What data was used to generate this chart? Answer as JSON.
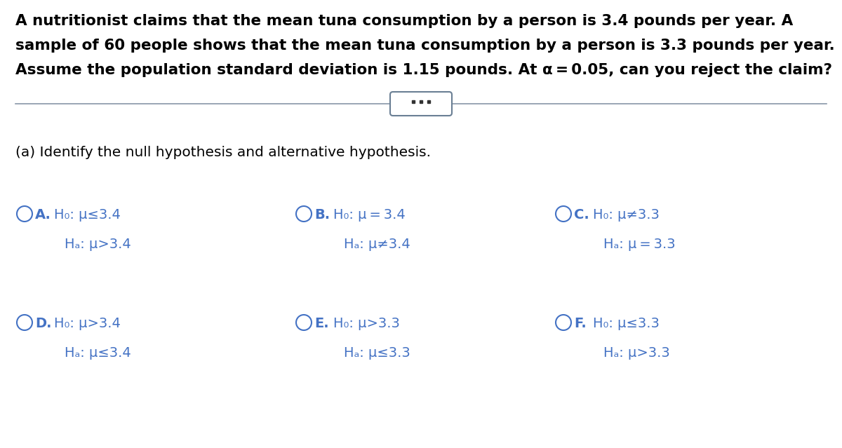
{
  "background_color": "#ffffff",
  "problem_text": "A nutritionist claims that the mean tuna consumption by a person is 3.4 pounds per year. A\nsample of 60 people shows that the mean tuna consumption by a person is 3.3 pounds per year.\nAssume the population standard deviation is 1.15 pounds. At α = 0.05, can you reject the claim?",
  "part_label": "(a) Identify the null hypothesis and alternative hypothesis.",
  "options": [
    {
      "letter": "A",
      "h0": "H₀: μ≤3.4",
      "ha": "Hₐ: μ>3.4",
      "col": 0,
      "row": 0
    },
    {
      "letter": "B",
      "h0": "H₀: μ = 3.4",
      "ha": "Hₐ: μ≠3.4",
      "col": 1,
      "row": 0
    },
    {
      "letter": "C",
      "h0": "H₀: μ≠3.3",
      "ha": "Hₐ: μ = 3.3",
      "col": 2,
      "row": 0
    },
    {
      "letter": "D",
      "h0": "H₀: μ>3.4",
      "ha": "Hₐ: μ≤3.4",
      "col": 0,
      "row": 1
    },
    {
      "letter": "E",
      "h0": "H₀: μ>3.3",
      "ha": "Hₐ: μ≤3.3",
      "col": 1,
      "row": 1
    },
    {
      "letter": "F",
      "h0": "H₀: μ≤3.3",
      "ha": "Hₐ: μ>3.3",
      "col": 2,
      "row": 1
    }
  ],
  "option_color": "#4472c4",
  "text_color": "#000000",
  "line_color": "#8896a8",
  "btn_edge_color": "#6a7f94",
  "font_size_problem": 15.5,
  "font_size_part": 14.5,
  "font_size_option": 14.0
}
